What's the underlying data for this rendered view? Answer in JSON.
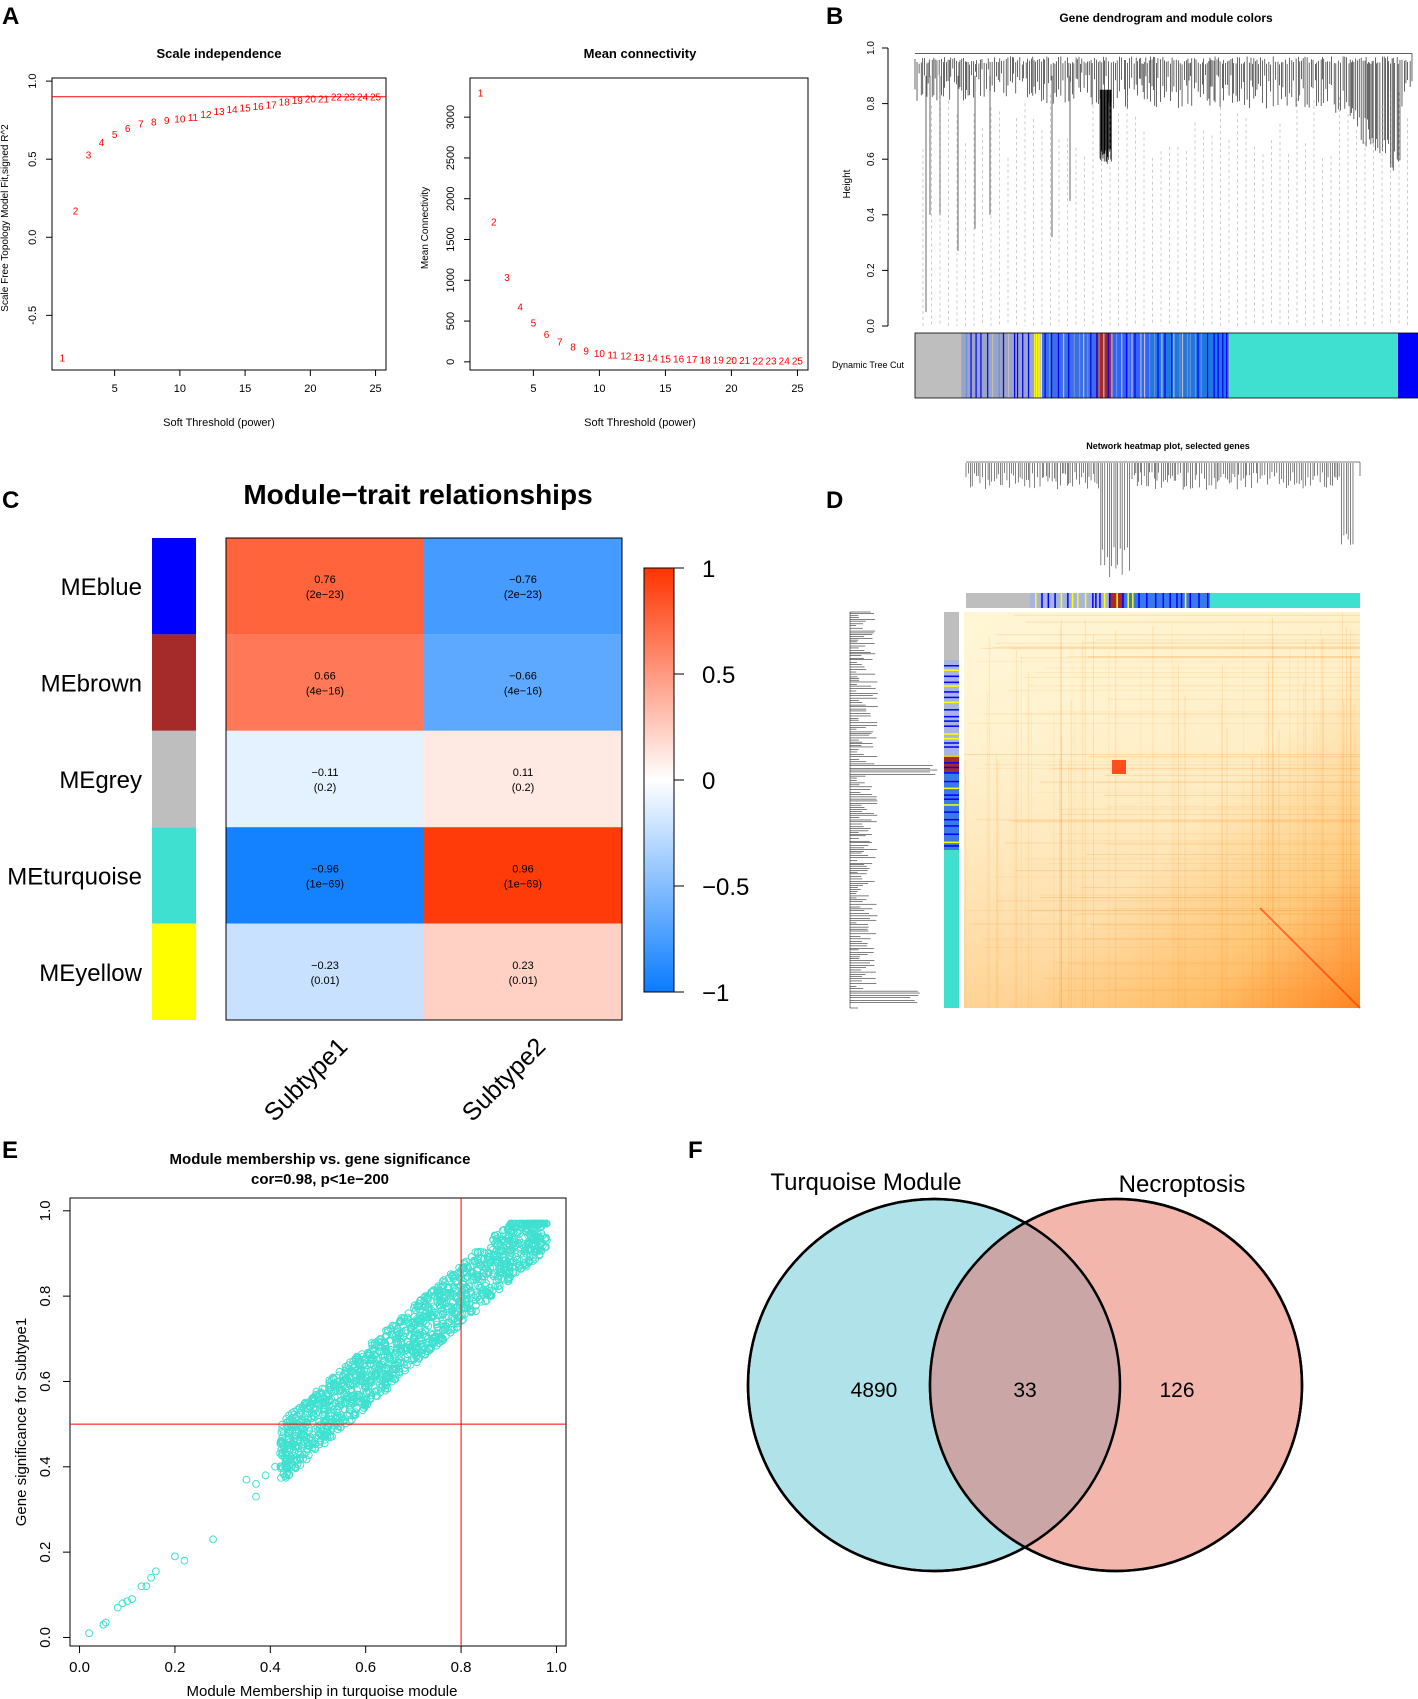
{
  "chart_data": [
    {
      "id": "A1",
      "panel": "A",
      "type": "scatter",
      "title": "Scale independence",
      "xlabel": "Soft Threshold (power)",
      "ylabel": "Scale Free Topology Model Fit,signed R^2",
      "xlim": [
        0.2,
        25.8
      ],
      "ylim": [
        -0.85,
        1.02
      ],
      "xticks": [
        5,
        10,
        15,
        20,
        25
      ],
      "yticks": [
        -0.5,
        0.0,
        0.5,
        1.0
      ],
      "ytick_labels": [
        "-0.5",
        "0.0",
        "0.5",
        "1.0"
      ],
      "hline": 0.9,
      "marker_color": "#ff0000",
      "points": [
        {
          "x": 1,
          "y": -0.77
        },
        {
          "x": 2,
          "y": 0.17
        },
        {
          "x": 3,
          "y": 0.53
        },
        {
          "x": 4,
          "y": 0.61
        },
        {
          "x": 5,
          "y": 0.66
        },
        {
          "x": 6,
          "y": 0.7
        },
        {
          "x": 7,
          "y": 0.73
        },
        {
          "x": 8,
          "y": 0.74
        },
        {
          "x": 9,
          "y": 0.75
        },
        {
          "x": 10,
          "y": 0.76
        },
        {
          "x": 11,
          "y": 0.77
        },
        {
          "x": 12,
          "y": 0.79
        },
        {
          "x": 13,
          "y": 0.81
        },
        {
          "x": 14,
          "y": 0.82
        },
        {
          "x": 15,
          "y": 0.83
        },
        {
          "x": 16,
          "y": 0.84
        },
        {
          "x": 17,
          "y": 0.85
        },
        {
          "x": 18,
          "y": 0.87
        },
        {
          "x": 19,
          "y": 0.88
        },
        {
          "x": 20,
          "y": 0.89
        },
        {
          "x": 21,
          "y": 0.89
        },
        {
          "x": 22,
          "y": 0.9
        },
        {
          "x": 23,
          "y": 0.9
        },
        {
          "x": 24,
          "y": 0.9
        },
        {
          "x": 25,
          "y": 0.9
        }
      ]
    },
    {
      "id": "A2",
      "panel": "A",
      "type": "scatter",
      "title": "Mean connectivity",
      "xlabel": "Soft Threshold (power)",
      "ylabel": "Mean Connectivity",
      "xlim": [
        0.2,
        25.8
      ],
      "ylim": [
        -100,
        3480
      ],
      "xticks": [
        5,
        10,
        15,
        20,
        25
      ],
      "yticks": [
        0,
        500,
        1000,
        1500,
        2000,
        2500,
        3000
      ],
      "ytick_labels": [
        "0",
        "500",
        "1000",
        "1500",
        "2000",
        "2500",
        "3000"
      ],
      "marker_color": "#ff0000",
      "points": [
        {
          "x": 1,
          "y": 3300
        },
        {
          "x": 2,
          "y": 1720
        },
        {
          "x": 3,
          "y": 1040
        },
        {
          "x": 4,
          "y": 680
        },
        {
          "x": 5,
          "y": 480
        },
        {
          "x": 6,
          "y": 340
        },
        {
          "x": 7,
          "y": 250
        },
        {
          "x": 8,
          "y": 190
        },
        {
          "x": 9,
          "y": 140
        },
        {
          "x": 10,
          "y": 110
        },
        {
          "x": 11,
          "y": 90
        },
        {
          "x": 12,
          "y": 75
        },
        {
          "x": 13,
          "y": 62
        },
        {
          "x": 14,
          "y": 52
        },
        {
          "x": 15,
          "y": 44
        },
        {
          "x": 16,
          "y": 38
        },
        {
          "x": 17,
          "y": 33
        },
        {
          "x": 18,
          "y": 29
        },
        {
          "x": 19,
          "y": 26
        },
        {
          "x": 20,
          "y": 23
        },
        {
          "x": 21,
          "y": 21
        },
        {
          "x": 22,
          "y": 19
        },
        {
          "x": 23,
          "y": 17
        },
        {
          "x": 24,
          "y": 16
        },
        {
          "x": 25,
          "y": 15
        }
      ]
    },
    {
      "id": "B",
      "panel": "B",
      "type": "dendrogram",
      "title": "Gene dendrogram and module colors",
      "ylabel": "Height",
      "ylim": [
        0.0,
        1.0
      ],
      "yticks": [
        0.0,
        0.2,
        0.4,
        0.6,
        0.8,
        1.0
      ],
      "ytick_labels": [
        "0.0",
        "0.2",
        "0.4",
        "0.6",
        "0.8",
        "1.0"
      ],
      "color_bar_label": "Dynamic Tree Cut",
      "module_colors": {
        "grey": "#bebebe",
        "yellow": "#ffff00",
        "blue": "#0000ff",
        "brown": "#a52a2a",
        "turquoise": "#40e0d0"
      }
    },
    {
      "id": "C",
      "panel": "C",
      "type": "heatmap",
      "title": "Module−trait relationships",
      "rows": [
        "MEblue",
        "MEbrown",
        "MEgrey",
        "MEturquoise",
        "MEyellow"
      ],
      "row_colors": [
        "#0000ff",
        "#a52a2a",
        "#bebebe",
        "#40e0d0",
        "#ffff00"
      ],
      "columns": [
        "Subtype1",
        "Subtype2"
      ],
      "values": [
        [
          0.76,
          -0.76
        ],
        [
          0.66,
          -0.66
        ],
        [
          -0.11,
          0.11
        ],
        [
          -0.96,
          0.96
        ],
        [
          -0.23,
          0.23
        ]
      ],
      "cell_labels": [
        [
          "0.76",
          "−0.76"
        ],
        [
          "0.66",
          "−0.66"
        ],
        [
          "−0.11",
          "0.11"
        ],
        [
          "−0.96",
          "0.96"
        ],
        [
          "−0.23",
          "0.23"
        ]
      ],
      "pvalues": [
        [
          "(2e−23)",
          "(2e−23)"
        ],
        [
          "(4e−16)",
          "(4e−16)"
        ],
        [
          "(0.2)",
          "(0.2)"
        ],
        [
          "(1e−69)",
          "(1e−69)"
        ],
        [
          "(0.01)",
          "(0.01)"
        ]
      ],
      "colorbar_ticks": [
        1,
        0.5,
        0,
        -0.5,
        -1
      ],
      "colorbar_labels": [
        "1",
        "0.5",
        "0",
        "−0.5",
        "−1"
      ]
    },
    {
      "id": "D",
      "panel": "D",
      "type": "heatmap",
      "title": "Network heatmap plot, selected genes",
      "description_colors": {
        "low": "#fff6d5",
        "high": "#ff3300"
      }
    },
    {
      "id": "E",
      "panel": "E",
      "type": "scatter",
      "title": "Module membership vs. gene significance",
      "subtitle": "cor=0.98, p<1e−200",
      "xlabel": "Module Membership in turquoise module",
      "ylabel": "Gene significance for  Subtype1",
      "xlim": [
        -0.02,
        1.02
      ],
      "ylim": [
        -0.02,
        1.03
      ],
      "xticks": [
        0.0,
        0.2,
        0.4,
        0.6,
        0.8,
        1.0
      ],
      "xtick_labels": [
        "0.0",
        "0.2",
        "0.4",
        "0.6",
        "0.8",
        "1.0"
      ],
      "yticks": [
        0.0,
        0.2,
        0.4,
        0.6,
        0.8,
        1.0
      ],
      "ytick_labels": [
        "0.0",
        "0.2",
        "0.4",
        "0.6",
        "0.8",
        "1.0"
      ],
      "vline": 0.8,
      "hline": 0.5,
      "correlation": 0.98,
      "marker_color": "#40e0d0",
      "sparse_points": [
        {
          "x": 0.02,
          "y": 0.01
        },
        {
          "x": 0.05,
          "y": 0.03
        },
        {
          "x": 0.055,
          "y": 0.035
        },
        {
          "x": 0.08,
          "y": 0.07
        },
        {
          "x": 0.09,
          "y": 0.08
        },
        {
          "x": 0.1,
          "y": 0.085
        },
        {
          "x": 0.11,
          "y": 0.09
        },
        {
          "x": 0.13,
          "y": 0.12
        },
        {
          "x": 0.14,
          "y": 0.12
        },
        {
          "x": 0.15,
          "y": 0.14
        },
        {
          "x": 0.16,
          "y": 0.155
        },
        {
          "x": 0.2,
          "y": 0.19
        },
        {
          "x": 0.22,
          "y": 0.18
        },
        {
          "x": 0.28,
          "y": 0.23
        },
        {
          "x": 0.35,
          "y": 0.37
        },
        {
          "x": 0.37,
          "y": 0.33
        },
        {
          "x": 0.37,
          "y": 0.36
        },
        {
          "x": 0.39,
          "y": 0.38
        },
        {
          "x": 0.41,
          "y": 0.4
        }
      ]
    },
    {
      "id": "F",
      "panel": "F",
      "type": "venn",
      "sets": [
        {
          "name": "Turquoise Module",
          "color": "#b0e2ea"
        },
        {
          "name": "Necroptosis",
          "color": "#f2b6ac"
        }
      ],
      "overlap_color": "#caa6a6",
      "only_left": "4890",
      "intersection": "33",
      "only_right": "126"
    }
  ],
  "panels": {
    "A": "A",
    "B": "B",
    "C": "C",
    "D": "D",
    "E": "E",
    "F": "F"
  }
}
